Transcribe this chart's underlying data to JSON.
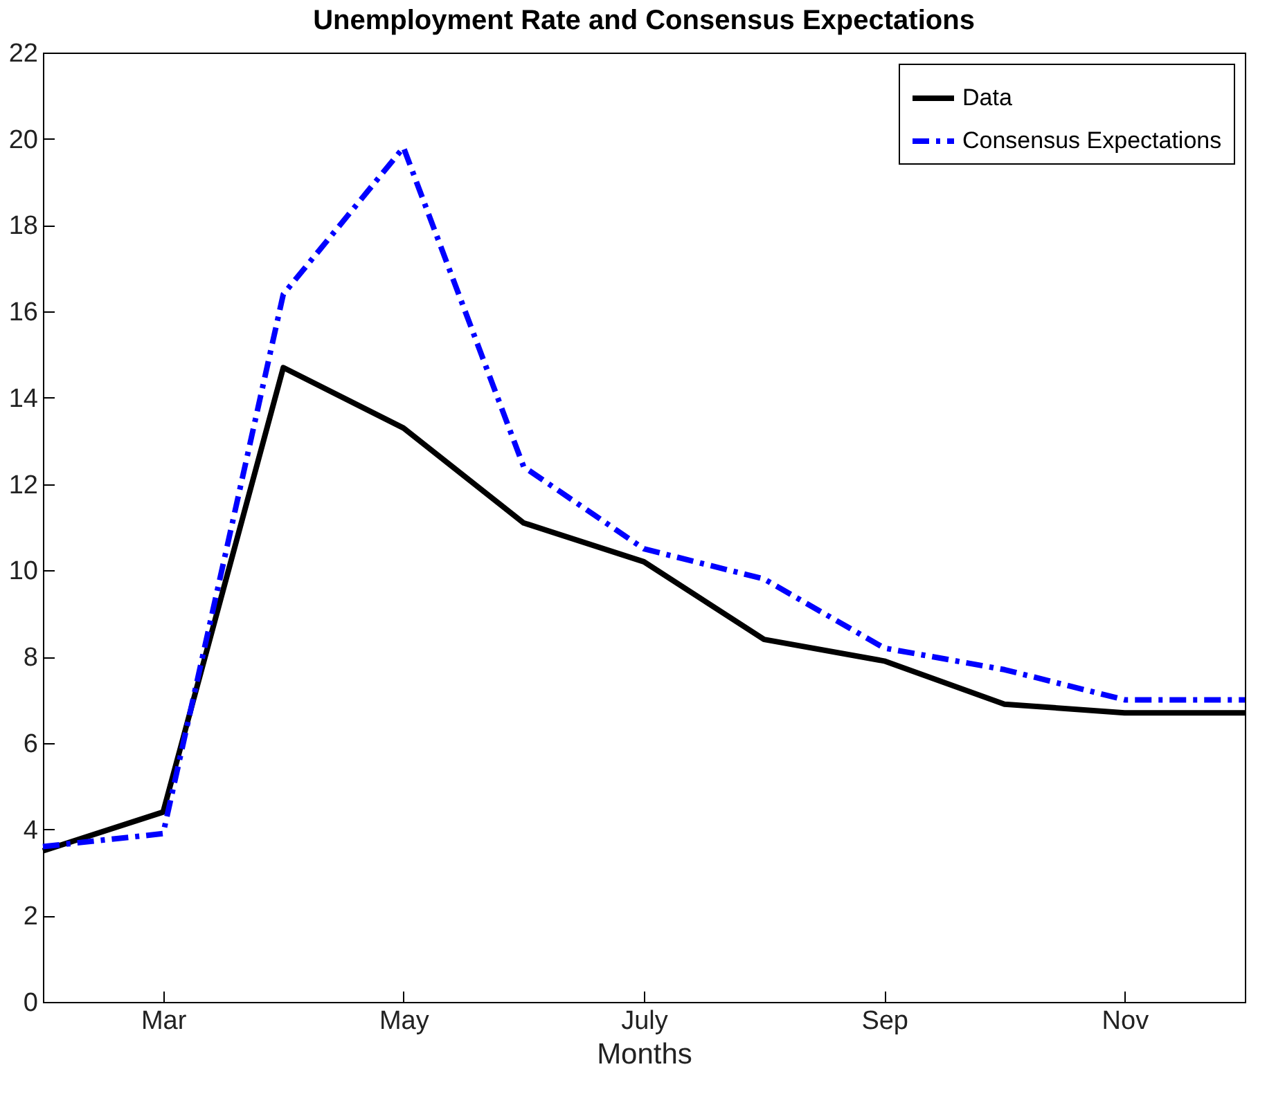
{
  "chart_data": {
    "type": "line",
    "title": "Unemployment Rate and Consensus Expectations",
    "xlabel": "Months",
    "categories": [
      null,
      "Mar",
      null,
      "May",
      null,
      "July",
      null,
      "Sep",
      null,
      "Nov",
      null
    ],
    "series": [
      {
        "name": "Data",
        "color": "#000000",
        "line_style": "solid",
        "values": [
          3.5,
          4.4,
          14.7,
          13.3,
          11.1,
          10.2,
          8.4,
          7.9,
          6.9,
          6.7,
          6.7
        ]
      },
      {
        "name": "Consensus Expectations",
        "color": "#0000ff",
        "line_style": "dashdot",
        "values": [
          3.6,
          3.9,
          16.4,
          19.8,
          12.4,
          10.5,
          9.8,
          8.2,
          7.7,
          7.0,
          7.0
        ]
      }
    ],
    "ylim": [
      0,
      22
    ],
    "yticks": [
      0,
      2,
      4,
      6,
      8,
      10,
      12,
      14,
      16,
      18,
      20,
      22
    ],
    "grid": false,
    "legend": "top right"
  }
}
